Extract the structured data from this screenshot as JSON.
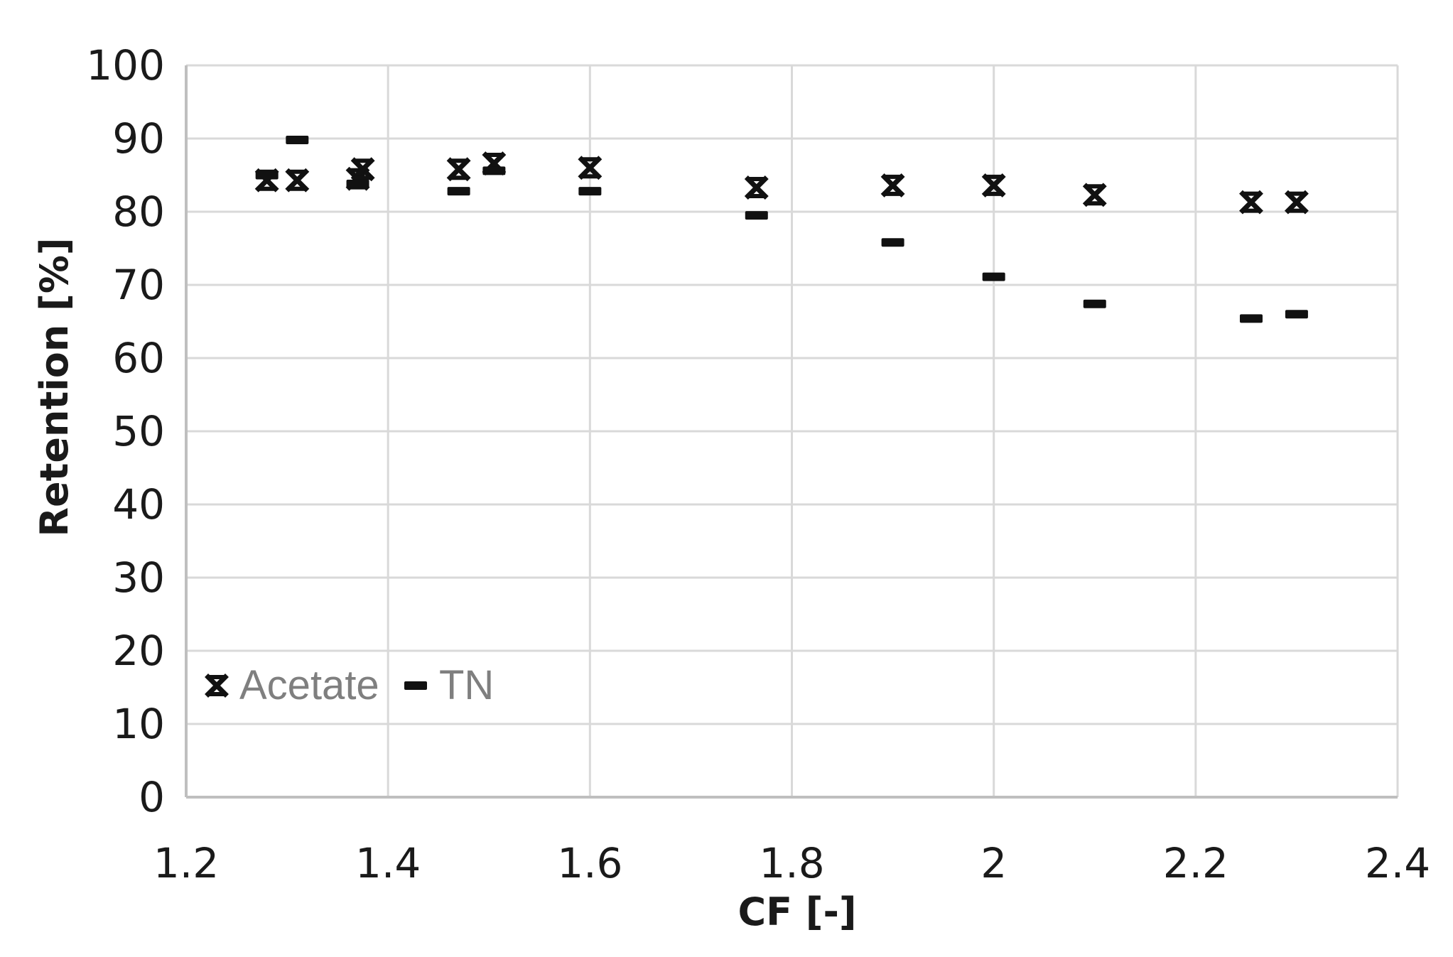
{
  "chart_data": {
    "type": "scatter",
    "title": "",
    "xlabel": "CF [-]",
    "ylabel": "Retention [%]",
    "xlim": [
      1.2,
      2.4
    ],
    "ylim": [
      0,
      100
    ],
    "x_ticks": [
      "1.2",
      "1.4",
      "1.6",
      "1.8",
      "2",
      "2.2",
      "2.4"
    ],
    "y_ticks": [
      "0",
      "10",
      "20",
      "30",
      "40",
      "50",
      "60",
      "70",
      "80",
      "90",
      "100"
    ],
    "grid": true,
    "legend_position": "bottom-left",
    "series": [
      {
        "name": "Acetate",
        "marker": "x-star",
        "color": "#111111",
        "x": [
          1.28,
          1.31,
          1.37,
          1.375,
          1.47,
          1.505,
          1.6,
          1.765,
          1.9,
          2.0,
          2.1,
          2.255,
          2.3
        ],
        "y": [
          84.3,
          84.3,
          84.5,
          85.8,
          85.8,
          86.6,
          86.0,
          83.3,
          83.6,
          83.6,
          82.3,
          81.3,
          81.3
        ]
      },
      {
        "name": "TN",
        "marker": "dash",
        "color": "#111111",
        "x": [
          1.28,
          1.31,
          1.37,
          1.47,
          1.505,
          1.6,
          1.765,
          1.9,
          2.0,
          2.1,
          2.255,
          2.3
        ],
        "y": [
          85.0,
          89.8,
          83.8,
          82.8,
          85.6,
          82.8,
          79.5,
          75.8,
          71.1,
          67.4,
          65.4,
          66.0
        ]
      }
    ]
  }
}
